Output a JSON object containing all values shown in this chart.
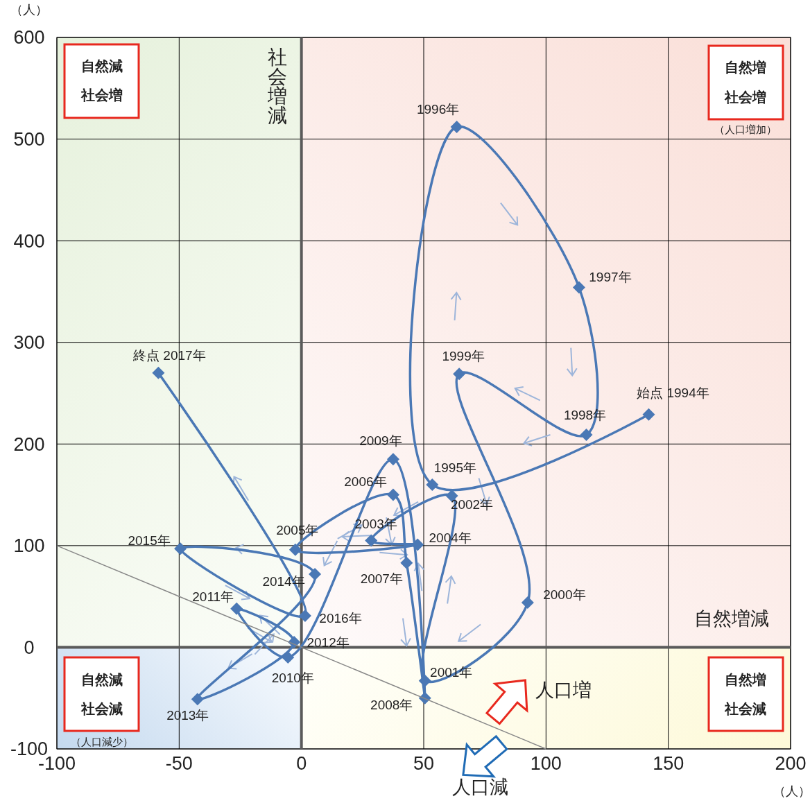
{
  "chart_data": {
    "type": "line",
    "xlabel": "（人）",
    "ylabel": "（人）",
    "xlim": [
      -100,
      200
    ],
    "xticks": [
      -100,
      -50,
      0,
      50,
      100,
      150,
      200
    ],
    "ylim": [
      -100,
      600
    ],
    "yticks": [
      -100,
      0,
      100,
      200,
      300,
      400,
      500,
      600
    ],
    "grid": true,
    "marker": "diamond",
    "line_style": "solid",
    "series": [
      {
        "color": "#4a78b5",
        "x": [
          142,
          53.5,
          63.5,
          113.5,
          116.5,
          64.5,
          92.5,
          50.5,
          61.5,
          28.5,
          47.5,
          -2.5,
          37.5,
          43,
          50.5,
          37.5,
          -5.5,
          -26.5,
          -3,
          -42.5,
          5.5,
          -49.5,
          1.5,
          -58.5
        ],
        "values": [
          229,
          160,
          512,
          354,
          209,
          269,
          44,
          -33,
          149,
          105,
          101,
          96,
          150,
          83,
          -50,
          185,
          -10,
          38,
          5,
          -51,
          72,
          97,
          31,
          270
        ]
      },
      {
        "type": "line",
        "marker": "none",
        "color": "#888888",
        "x": [
          -100,
          100
        ],
        "values": [
          100,
          -100
        ]
      }
    ],
    "annotations": [
      {
        "text": "始点 1994年",
        "x": 142,
        "y": 229
      },
      {
        "text": "1995年",
        "x": 53.5,
        "y": 160
      },
      {
        "text": "1996年",
        "x": 63.5,
        "y": 512
      },
      {
        "text": "1997年",
        "x": 113.5,
        "y": 354
      },
      {
        "text": "1998年",
        "x": 116.5,
        "y": 209
      },
      {
        "text": "1999年",
        "x": 64.5,
        "y": 269
      },
      {
        "text": "2000年",
        "x": 92.5,
        "y": 44
      },
      {
        "text": "2001年",
        "x": 50.5,
        "y": -33
      },
      {
        "text": "2002年",
        "x": 61.5,
        "y": 149
      },
      {
        "text": "2003年",
        "x": 28.5,
        "y": 105
      },
      {
        "text": "2004年",
        "x": 47.5,
        "y": 101
      },
      {
        "text": "2005年",
        "x": -2.5,
        "y": 96
      },
      {
        "text": "2006年",
        "x": 37.5,
        "y": 150
      },
      {
        "text": "2007年",
        "x": 43,
        "y": 83
      },
      {
        "text": "2008年",
        "x": 50.5,
        "y": -50
      },
      {
        "text": "2009年",
        "x": 37.5,
        "y": 185
      },
      {
        "text": "2010年",
        "x": -5.5,
        "y": -10
      },
      {
        "text": "2011年",
        "x": -26.5,
        "y": 38
      },
      {
        "text": "2012年",
        "x": -3,
        "y": 5
      },
      {
        "text": "2013年",
        "x": -42.5,
        "y": -51
      },
      {
        "text": "2014年",
        "x": 5.5,
        "y": 72
      },
      {
        "text": "2015年",
        "x": -49.5,
        "y": 97
      },
      {
        "text": "2016年",
        "x": 1.5,
        "y": 31
      },
      {
        "text": "終点 2017年",
        "x": -58.5,
        "y": 270
      },
      "自然減",
      "社会増",
      "自然増",
      "社会増",
      "（人口増加）",
      "自然減",
      "社会減",
      "（人口減少）",
      "自然増",
      "社会減",
      "人口増",
      "人口減",
      "社会増減",
      "自然増減"
    ]
  }
}
